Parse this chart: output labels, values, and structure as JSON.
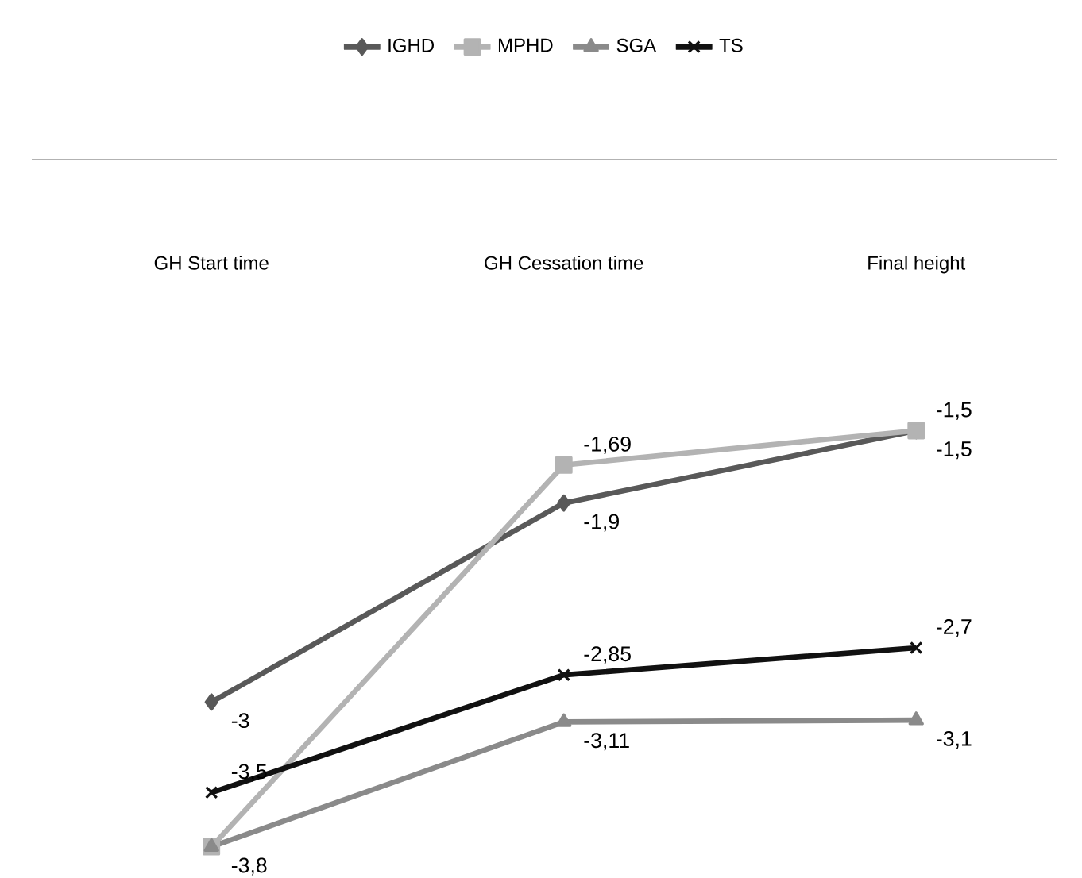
{
  "chart_data": {
    "type": "line",
    "categories": [
      "GH Start time",
      "GH Cessation time",
      "Final height"
    ],
    "series": [
      {
        "name": "IGHD",
        "color": "#595959",
        "marker": "diamond",
        "values": [
          -3,
          -1.9,
          -1.5
        ],
        "value_labels": [
          "-3",
          "-1,9",
          "-1,5"
        ]
      },
      {
        "name": "MPHD",
        "color": "#b3b3b3",
        "marker": "square",
        "values": [
          -3.8,
          -1.69,
          -1.5
        ],
        "value_labels": [
          null,
          "-1,69",
          "-1,5"
        ]
      },
      {
        "name": "SGA",
        "color": "#8a8a8a",
        "marker": "triangle",
        "values": [
          -3.8,
          -3.11,
          -3.1
        ],
        "value_labels": [
          "-3,8",
          "-3,11",
          "-3,1"
        ]
      },
      {
        "name": "TS",
        "color": "#111111",
        "marker": "cross",
        "values": [
          -3.5,
          -2.85,
          -2.7
        ],
        "value_labels": [
          "-3,5",
          "-2,85",
          "-2,7"
        ]
      }
    ],
    "legend": "top",
    "grid": false
  }
}
